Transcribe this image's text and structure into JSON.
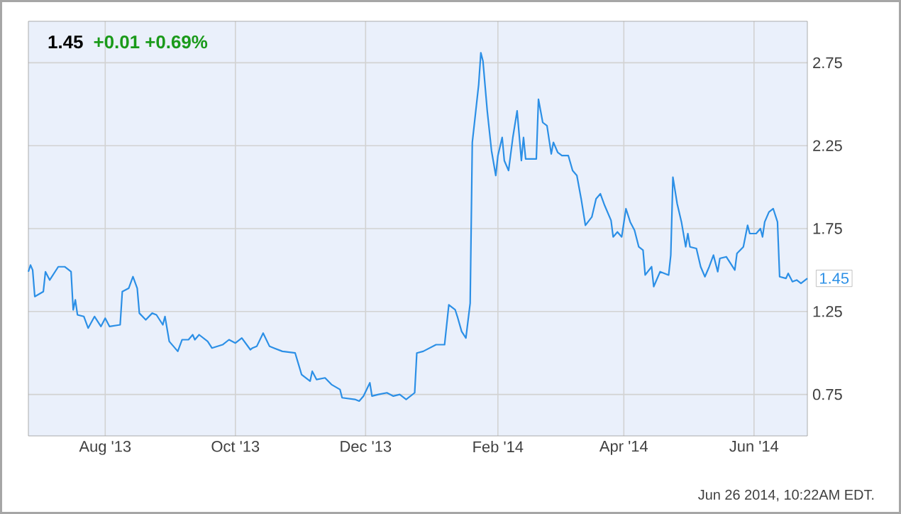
{
  "chart_data": {
    "type": "line",
    "title": "1.45",
    "subtitle": "+0.01 +0.69%",
    "annotations": [
      "Jun 26 2014, 10:22AM EDT.",
      {
        "text": "1.45",
        "x": "2014-06-26",
        "y": 1.45
      }
    ],
    "x": [
      "2013-06-26",
      "2013-06-27",
      "2013-06-28",
      "2013-06-29",
      "2013-07-03",
      "2013-07-04",
      "2013-07-06",
      "2013-07-10",
      "2013-07-13",
      "2013-07-16",
      "2013-07-17",
      "2013-07-18",
      "2013-07-19",
      "2013-07-22",
      "2013-07-24",
      "2013-07-27",
      "2013-07-30",
      "2013-08-01",
      "2013-08-03",
      "2013-08-08",
      "2013-08-09",
      "2013-08-12",
      "2013-08-14",
      "2013-08-16",
      "2013-08-17",
      "2013-08-20",
      "2013-08-23",
      "2013-08-25",
      "2013-08-28",
      "2013-08-29",
      "2013-08-31",
      "2013-09-04",
      "2013-09-06",
      "2013-09-09",
      "2013-09-11",
      "2013-09-12",
      "2013-09-14",
      "2013-09-18",
      "2013-09-20",
      "2013-09-25",
      "2013-09-28",
      "2013-10-01",
      "2013-10-04",
      "2013-10-08",
      "2013-10-09",
      "2013-10-11",
      "2013-10-14",
      "2013-10-17",
      "2013-10-19",
      "2013-10-23",
      "2013-10-29",
      "2013-11-01",
      "2013-11-05",
      "2013-11-06",
      "2013-11-08",
      "2013-11-12",
      "2013-11-15",
      "2013-11-19",
      "2013-11-20",
      "2013-11-26",
      "2013-11-28",
      "2013-11-30",
      "2013-12-03",
      "2013-12-04",
      "2013-12-07",
      "2013-12-11",
      "2013-12-14",
      "2013-12-17",
      "2013-12-20",
      "2013-12-24",
      "2013-12-25",
      "2013-12-28",
      "2013-12-31",
      "2014-01-03",
      "2014-01-07",
      "2014-01-09",
      "2014-01-12",
      "2014-01-13",
      "2014-01-15",
      "2014-01-17",
      "2014-01-19",
      "2014-01-20",
      "2014-01-23",
      "2014-01-24",
      "2014-01-25",
      "2014-01-27",
      "2014-01-29",
      "2014-01-31",
      "2014-02-01",
      "2014-02-03",
      "2014-02-04",
      "2014-02-06",
      "2014-02-08",
      "2014-02-10",
      "2014-02-12",
      "2014-02-13",
      "2014-02-14",
      "2014-02-19",
      "2014-02-20",
      "2014-02-22",
      "2014-02-24",
      "2014-02-26",
      "2014-02-27",
      "2014-03-01",
      "2014-03-03",
      "2014-03-06",
      "2014-03-08",
      "2014-03-10",
      "2014-03-12",
      "2014-03-14",
      "2014-03-17",
      "2014-03-19",
      "2014-03-21",
      "2014-03-23",
      "2014-03-26",
      "2014-03-27",
      "2014-03-29",
      "2014-03-31",
      "2014-04-02",
      "2014-04-04",
      "2014-04-06",
      "2014-04-08",
      "2014-04-10",
      "2014-04-11",
      "2014-04-14",
      "2014-04-15",
      "2014-04-18",
      "2014-04-22",
      "2014-04-23",
      "2014-04-24",
      "2014-04-26",
      "2014-04-28",
      "2014-04-30",
      "2014-05-01",
      "2014-05-02",
      "2014-05-05",
      "2014-05-07",
      "2014-05-09",
      "2014-05-11",
      "2014-05-13",
      "2014-05-15",
      "2014-05-16",
      "2014-05-19",
      "2014-05-23",
      "2014-05-24",
      "2014-05-27",
      "2014-05-29",
      "2014-05-30",
      "2014-06-02",
      "2014-06-04",
      "2014-06-05",
      "2014-06-06",
      "2014-06-08",
      "2014-06-10",
      "2014-06-12",
      "2014-06-13",
      "2014-06-16",
      "2014-06-17",
      "2014-06-19",
      "2014-06-21",
      "2014-06-23",
      "2014-06-26"
    ],
    "series": [
      {
        "color": "#2b8fe6",
        "values": [
          1.49,
          1.53,
          1.5,
          1.34,
          1.37,
          1.49,
          1.44,
          1.52,
          1.52,
          1.49,
          1.26,
          1.32,
          1.23,
          1.22,
          1.15,
          1.22,
          1.16,
          1.21,
          1.16,
          1.17,
          1.37,
          1.39,
          1.46,
          1.39,
          1.24,
          1.2,
          1.24,
          1.23,
          1.17,
          1.22,
          1.07,
          1.01,
          1.08,
          1.08,
          1.11,
          1.08,
          1.11,
          1.07,
          1.03,
          1.05,
          1.08,
          1.06,
          1.09,
          1.02,
          1.03,
          1.04,
          1.12,
          1.04,
          1.03,
          1.01,
          1.0,
          0.87,
          0.83,
          0.89,
          0.84,
          0.85,
          0.81,
          0.78,
          0.73,
          0.72,
          0.71,
          0.74,
          0.82,
          0.74,
          0.75,
          0.76,
          0.74,
          0.75,
          0.72,
          0.76,
          1.0,
          1.01,
          1.03,
          1.05,
          1.05,
          1.29,
          1.26,
          1.22,
          1.13,
          1.09,
          1.3,
          2.27,
          2.62,
          2.81,
          2.76,
          2.46,
          2.22,
          2.07,
          2.19,
          2.3,
          2.16,
          2.1,
          2.3,
          2.46,
          2.16,
          2.3,
          2.17,
          2.17,
          2.53,
          2.39,
          2.37,
          2.2,
          2.27,
          2.21,
          2.19,
          2.19,
          2.1,
          2.07,
          1.93,
          1.77,
          1.82,
          1.93,
          1.96,
          1.89,
          1.8,
          1.7,
          1.73,
          1.7,
          1.87,
          1.79,
          1.74,
          1.64,
          1.62,
          1.47,
          1.52,
          1.4,
          1.49,
          1.47,
          1.59,
          2.06,
          1.9,
          1.79,
          1.64,
          1.72,
          1.64,
          1.63,
          1.52,
          1.46,
          1.52,
          1.59,
          1.49,
          1.57,
          1.58,
          1.5,
          1.6,
          1.64,
          1.77,
          1.72,
          1.72,
          1.75,
          1.7,
          1.79,
          1.85,
          1.87,
          1.79,
          1.46,
          1.45,
          1.48,
          1.43,
          1.44,
          1.42,
          1.45
        ]
      }
    ],
    "xlim": [
      "2013-06-26",
      "2014-06-26"
    ],
    "xticks": [
      {
        "value": "2013-08-01",
        "label": "Aug '13"
      },
      {
        "value": "2013-10-01",
        "label": "Oct '13"
      },
      {
        "value": "2013-12-01",
        "label": "Dec '13"
      },
      {
        "value": "2014-02-01",
        "label": "Feb '14"
      },
      {
        "value": "2014-04-01",
        "label": "Apr '14"
      },
      {
        "value": "2014-06-01",
        "label": "Jun '14"
      }
    ],
    "ylim": [
      0.5,
      3.0
    ],
    "yticks": [
      0.75,
      1.25,
      1.75,
      2.25,
      2.75
    ],
    "grid": true
  }
}
